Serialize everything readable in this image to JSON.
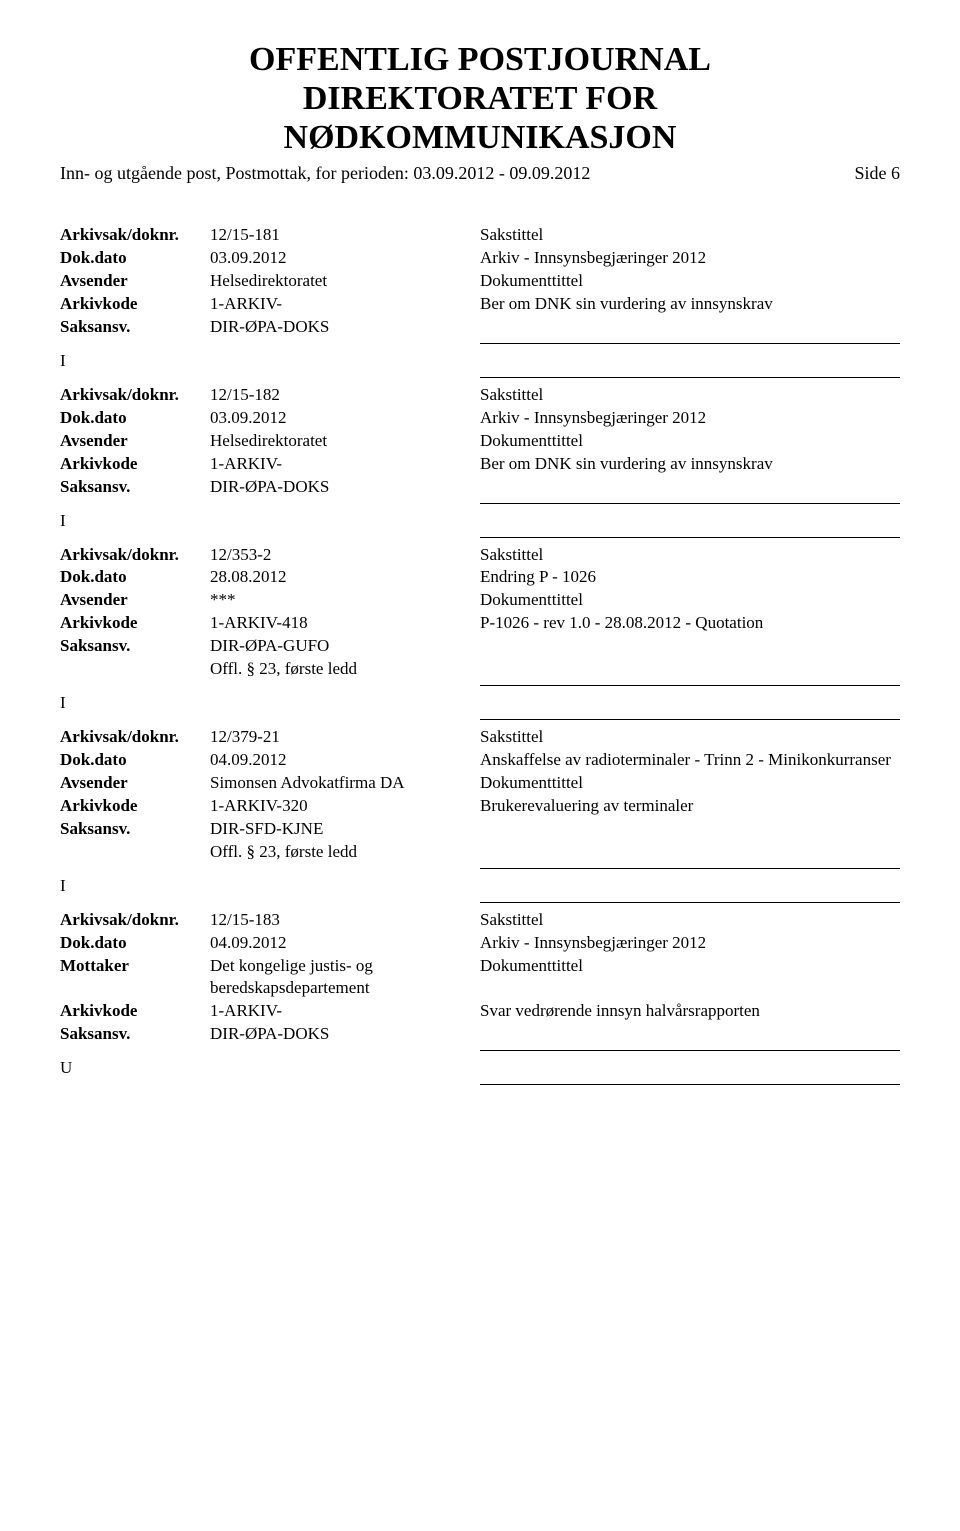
{
  "header": {
    "title1": "OFFENTLIG POSTJOURNAL",
    "title2": "DIREKTORATET FOR",
    "title3": "NØDKOMMUNIKASJON",
    "subline": "Inn- og utgående post, Postmottak, for perioden: 03.09.2012 - 09.09.2012",
    "pageside": "Side 6"
  },
  "labels": {
    "arkivsak": "Arkivsak/doknr.",
    "dokdato": "Dok.dato",
    "avsender": "Avsender",
    "mottaker": "Mottaker",
    "arkivkode": "Arkivkode",
    "saksansv": "Saksansv.",
    "sakstittel": "Sakstittel",
    "dokumenttittel": "Dokumenttittel"
  },
  "records": [
    {
      "doknr": "12/15-181",
      "dato": "03.09.2012",
      "party_label": "Avsender",
      "party_value": "Helsedirektoratet",
      "arkivkode": "1-ARKIV-",
      "saksansv": "DIR-ØPA-DOKS",
      "extra_saksansv": "",
      "sakstittel": "Arkiv - Innsynsbegjæringer 2012",
      "doktittel": "Ber om DNK sin vurdering av innsynskrav",
      "io": "I"
    },
    {
      "doknr": "12/15-182",
      "dato": "03.09.2012",
      "party_label": "Avsender",
      "party_value": "Helsedirektoratet",
      "arkivkode": "1-ARKIV-",
      "saksansv": "DIR-ØPA-DOKS",
      "extra_saksansv": "",
      "sakstittel": "Arkiv - Innsynsbegjæringer 2012",
      "doktittel": "Ber om DNK sin vurdering av innsynskrav",
      "io": "I"
    },
    {
      "doknr": "12/353-2",
      "dato": "28.08.2012",
      "party_label": "Avsender",
      "party_value": "***",
      "arkivkode": "1-ARKIV-418",
      "saksansv": "DIR-ØPA-GUFO",
      "extra_saksansv": "Offl. § 23, første ledd",
      "sakstittel": "Endring P - 1026",
      "doktittel": "P-1026  - rev 1.0 - 28.08.2012 - Quotation",
      "io": "I"
    },
    {
      "doknr": "12/379-21",
      "dato": "04.09.2012",
      "party_label": "Avsender",
      "party_value": "Simonsen Advokatfirma DA",
      "arkivkode": "1-ARKIV-320",
      "saksansv": "DIR-SFD-KJNE",
      "extra_saksansv": "Offl. § 23, første ledd",
      "sakstittel": "Anskaffelse av radioterminaler - Trinn 2 - Minikonkurranser",
      "doktittel": "Brukerevaluering av terminaler",
      "io": "I"
    },
    {
      "doknr": "12/15-183",
      "dato": "04.09.2012",
      "party_label": "Mottaker",
      "party_value": "Det kongelige justis- og beredskapsdepartement",
      "arkivkode": "1-ARKIV-",
      "saksansv": "DIR-ØPA-DOKS",
      "extra_saksansv": "",
      "sakstittel": "Arkiv - Innsynsbegjæringer 2012",
      "doktittel": "Svar vedrørende innsyn halvårsrapporten",
      "io": "U"
    }
  ]
}
